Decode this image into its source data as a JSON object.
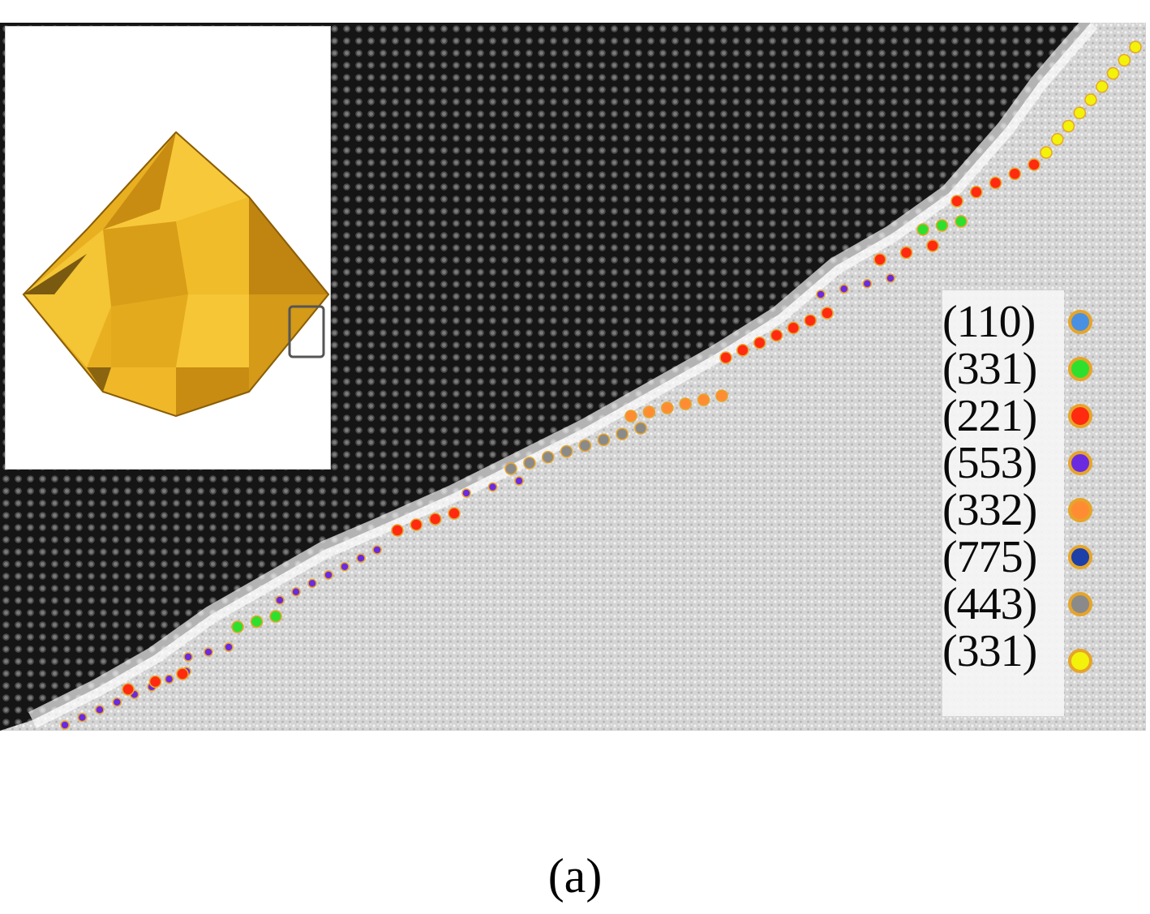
{
  "panel_label": "(a)",
  "legend": [
    {
      "label": "(110)",
      "color": "#4a90e2",
      "icon": "light-blue-atom-dot"
    },
    {
      "label": "(331)",
      "color": "#2ee02e",
      "icon": "green-atom-dot"
    },
    {
      "label": "(221)",
      "color": "#ff2a10",
      "icon": "red-atom-dot"
    },
    {
      "label": "(553)",
      "color": "#6a2be0",
      "icon": "purple-atom-dot"
    },
    {
      "label": "(332)",
      "color": "#ff8c33",
      "icon": "orange-atom-dot"
    },
    {
      "label": "(775)",
      "color": "#1c3fa8",
      "icon": "dark-blue-atom-dot"
    },
    {
      "label": "(443)",
      "color": "#8a8a8a",
      "icon": "gray-atom-dot"
    },
    {
      "label": "(331)",
      "color": "#f2f20a",
      "icon": "yellow-atom-dot"
    }
  ],
  "colors": {
    "crystal": "#1c1c1c",
    "vacuum": "#d8d8d8",
    "nanocrystal_gold": "#e8b020",
    "dot_outline": "#e6a52a"
  },
  "inset": {
    "subject": "gold polyhedral nanocrystal",
    "icon": "nanocrystal-model-icon"
  }
}
